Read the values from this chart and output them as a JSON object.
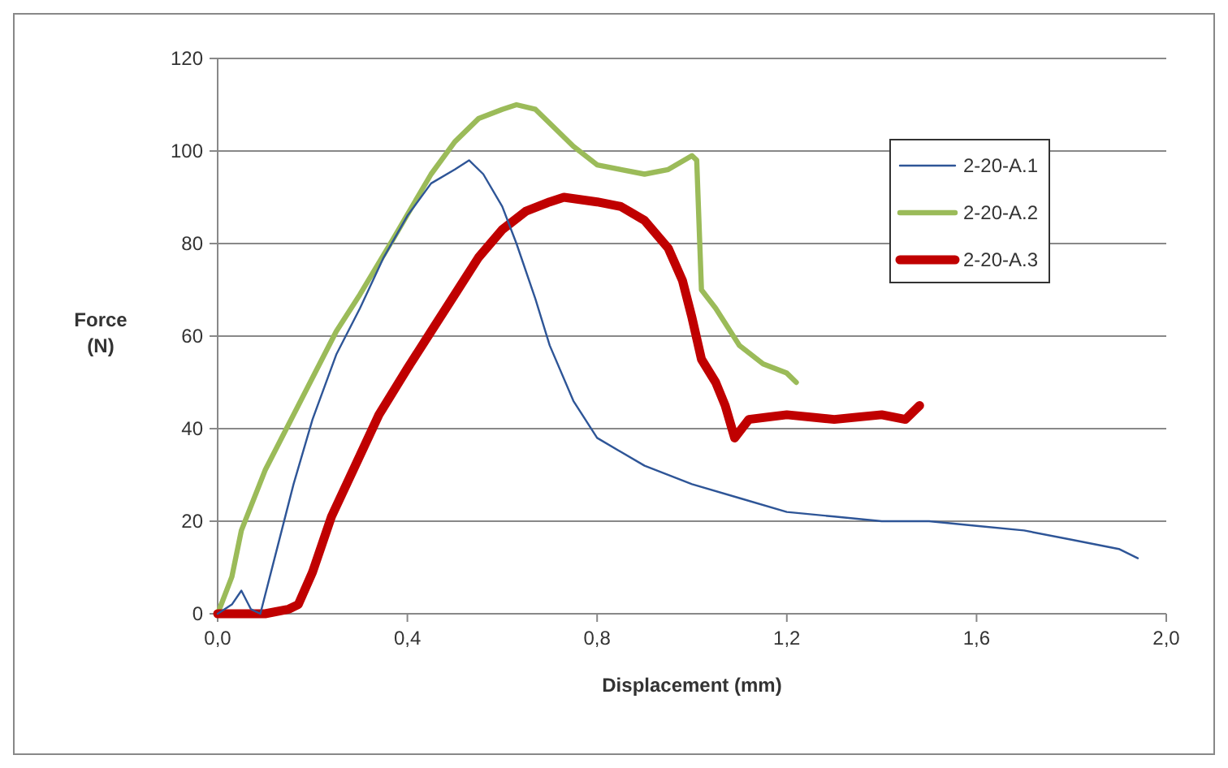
{
  "chart_data": {
    "type": "line",
    "xlabel": "Displacement (mm)",
    "ylabel": "Force\n(N)",
    "xlim": [
      0,
      2
    ],
    "xticks": [
      {
        "value": 0,
        "label": "0,0"
      },
      {
        "value": 0.4,
        "label": "0,4"
      },
      {
        "value": 0.8,
        "label": "0,8"
      },
      {
        "value": 1.2,
        "label": "1,2"
      },
      {
        "value": 1.6,
        "label": "1,6"
      },
      {
        "value": 2,
        "label": "2,0"
      }
    ],
    "ylim": [
      0,
      120
    ],
    "yticks": [
      0,
      20,
      40,
      60,
      80,
      100,
      120
    ],
    "grid": "y",
    "legend": "right",
    "series": [
      {
        "name": "2-20-A.1",
        "color": "#2e5597",
        "x": [
          0,
          0.03,
          0.05,
          0.07,
          0.09,
          0.12,
          0.16,
          0.2,
          0.25,
          0.3,
          0.35,
          0.4,
          0.45,
          0.5,
          0.53,
          0.56,
          0.6,
          0.63,
          0.67,
          0.7,
          0.75,
          0.8,
          0.9,
          1.0,
          1.1,
          1.2,
          1.3,
          1.4,
          1.5,
          1.6,
          1.7,
          1.8,
          1.9,
          1.94
        ],
        "values": [
          0,
          2,
          5,
          1,
          0,
          12,
          28,
          42,
          56,
          66,
          77,
          86,
          93,
          96,
          98,
          95,
          88,
          80,
          68,
          58,
          46,
          38,
          32,
          28,
          25,
          22,
          21,
          20,
          20,
          19,
          18,
          16,
          14,
          12
        ]
      },
      {
        "name": "2-20-A.2",
        "color": "#9bbb59",
        "x": [
          0,
          0.03,
          0.05,
          0.1,
          0.15,
          0.2,
          0.25,
          0.3,
          0.37,
          0.45,
          0.5,
          0.55,
          0.6,
          0.63,
          0.67,
          0.7,
          0.75,
          0.8,
          0.85,
          0.9,
          0.95,
          1.0,
          1.01,
          1.02,
          1.05,
          1.1,
          1.15,
          1.2,
          1.22
        ],
        "values": [
          0,
          8,
          18,
          31,
          41,
          51,
          61,
          69,
          81,
          95,
          102,
          107,
          109,
          110,
          109,
          106,
          101,
          97,
          96,
          95,
          96,
          99,
          98,
          70,
          66,
          58,
          54,
          52,
          50
        ]
      },
      {
        "name": "2-20-A.3",
        "color": "#c00000",
        "x": [
          0,
          0.1,
          0.15,
          0.17,
          0.2,
          0.24,
          0.29,
          0.34,
          0.4,
          0.45,
          0.5,
          0.55,
          0.6,
          0.65,
          0.7,
          0.73,
          0.8,
          0.85,
          0.9,
          0.95,
          0.98,
          1.0,
          1.02,
          1.05,
          1.07,
          1.09,
          1.12,
          1.2,
          1.3,
          1.4,
          1.45,
          1.48
        ],
        "values": [
          0,
          0,
          1,
          2,
          9,
          21,
          32,
          43,
          53,
          61,
          69,
          77,
          83,
          87,
          89,
          90,
          89,
          88,
          85,
          79,
          72,
          64,
          55,
          50,
          45,
          38,
          42,
          43,
          42,
          43,
          42,
          45
        ]
      }
    ]
  }
}
